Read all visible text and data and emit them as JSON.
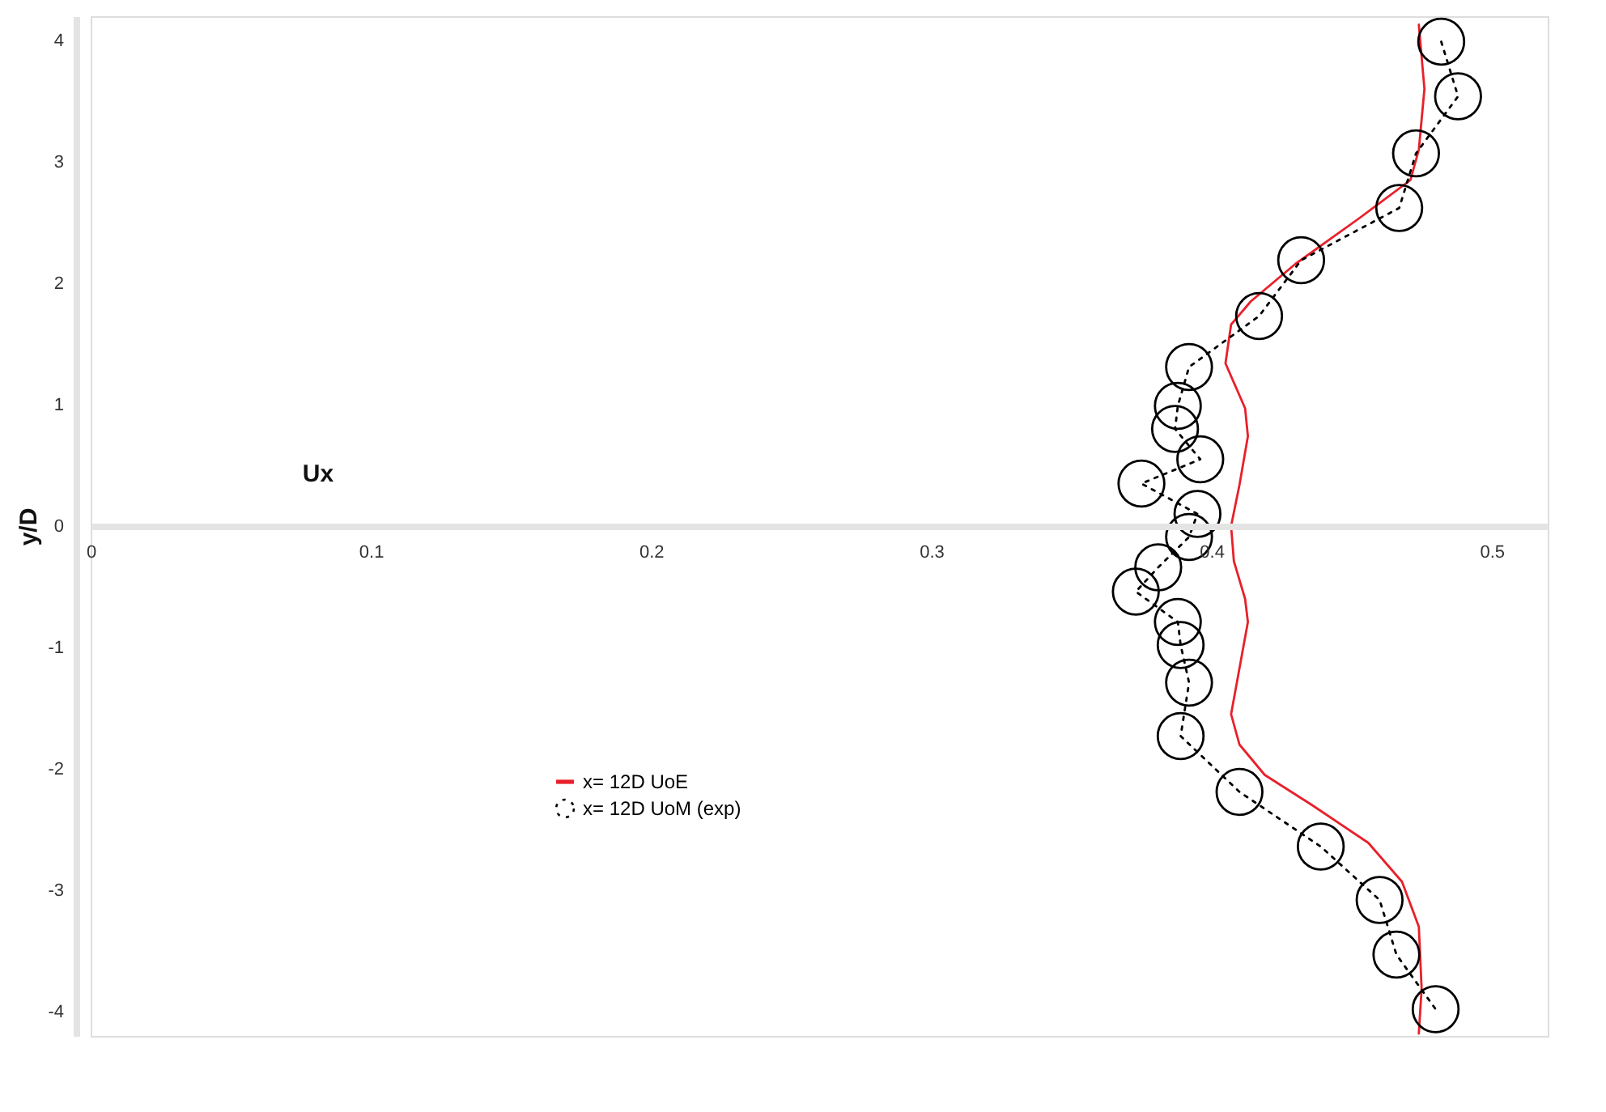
{
  "chart_data": {
    "type": "line",
    "xlabel": "Ux",
    "ylabel": "y/D",
    "xlim": [
      0,
      0.52
    ],
    "ylim": [
      -4.2,
      4.2
    ],
    "xticks": [
      0,
      0.1,
      0.2,
      0.3,
      0.4,
      0.5
    ],
    "yticks": [
      -4,
      -3,
      -2,
      -1,
      0,
      1,
      2,
      3,
      4
    ],
    "grid": false,
    "legend": "bottom left",
    "series": [
      {
        "name": "x= 12D UoE",
        "color": "#e8202a",
        "line_style": "solid",
        "marker": "none",
        "x": [
          0.474,
          0.476,
          0.474,
          0.471,
          0.453,
          0.43,
          0.414,
          0.407,
          0.405,
          0.412,
          0.413,
          0.41,
          0.407,
          0.408,
          0.412,
          0.413,
          0.41,
          0.407,
          0.41,
          0.419,
          0.436,
          0.456,
          0.468,
          0.474,
          0.475,
          0.474
        ],
        "values": [
          4.13,
          3.6,
          3.1,
          2.85,
          2.54,
          2.16,
          1.85,
          1.66,
          1.34,
          0.97,
          0.74,
          0.34,
          0,
          -0.29,
          -0.6,
          -0.79,
          -1.17,
          -1.55,
          -1.8,
          -2.05,
          -2.3,
          -2.61,
          -2.93,
          -3.3,
          -3.81,
          -4.18
        ]
      },
      {
        "name": "x= 12D UoM (exp)",
        "color": "#000000",
        "line_style": "dotted",
        "marker": "circle",
        "x": [
          0.482,
          0.488,
          0.473,
          0.467,
          0.432,
          0.417,
          0.392,
          0.388,
          0.387,
          0.396,
          0.375,
          0.395,
          0.392,
          0.381,
          0.373,
          0.388,
          0.389,
          0.392,
          0.389,
          0.41,
          0.439,
          0.46,
          0.466,
          0.48
        ],
        "values": [
          3.99,
          3.54,
          3.07,
          2.62,
          2.19,
          1.73,
          1.31,
          0.99,
          0.8,
          0.55,
          0.35,
          0.1,
          -0.09,
          -0.34,
          -0.54,
          -0.79,
          -0.98,
          -1.29,
          -1.73,
          -2.19,
          -2.64,
          -3.08,
          -3.53,
          -3.98
        ]
      }
    ]
  }
}
